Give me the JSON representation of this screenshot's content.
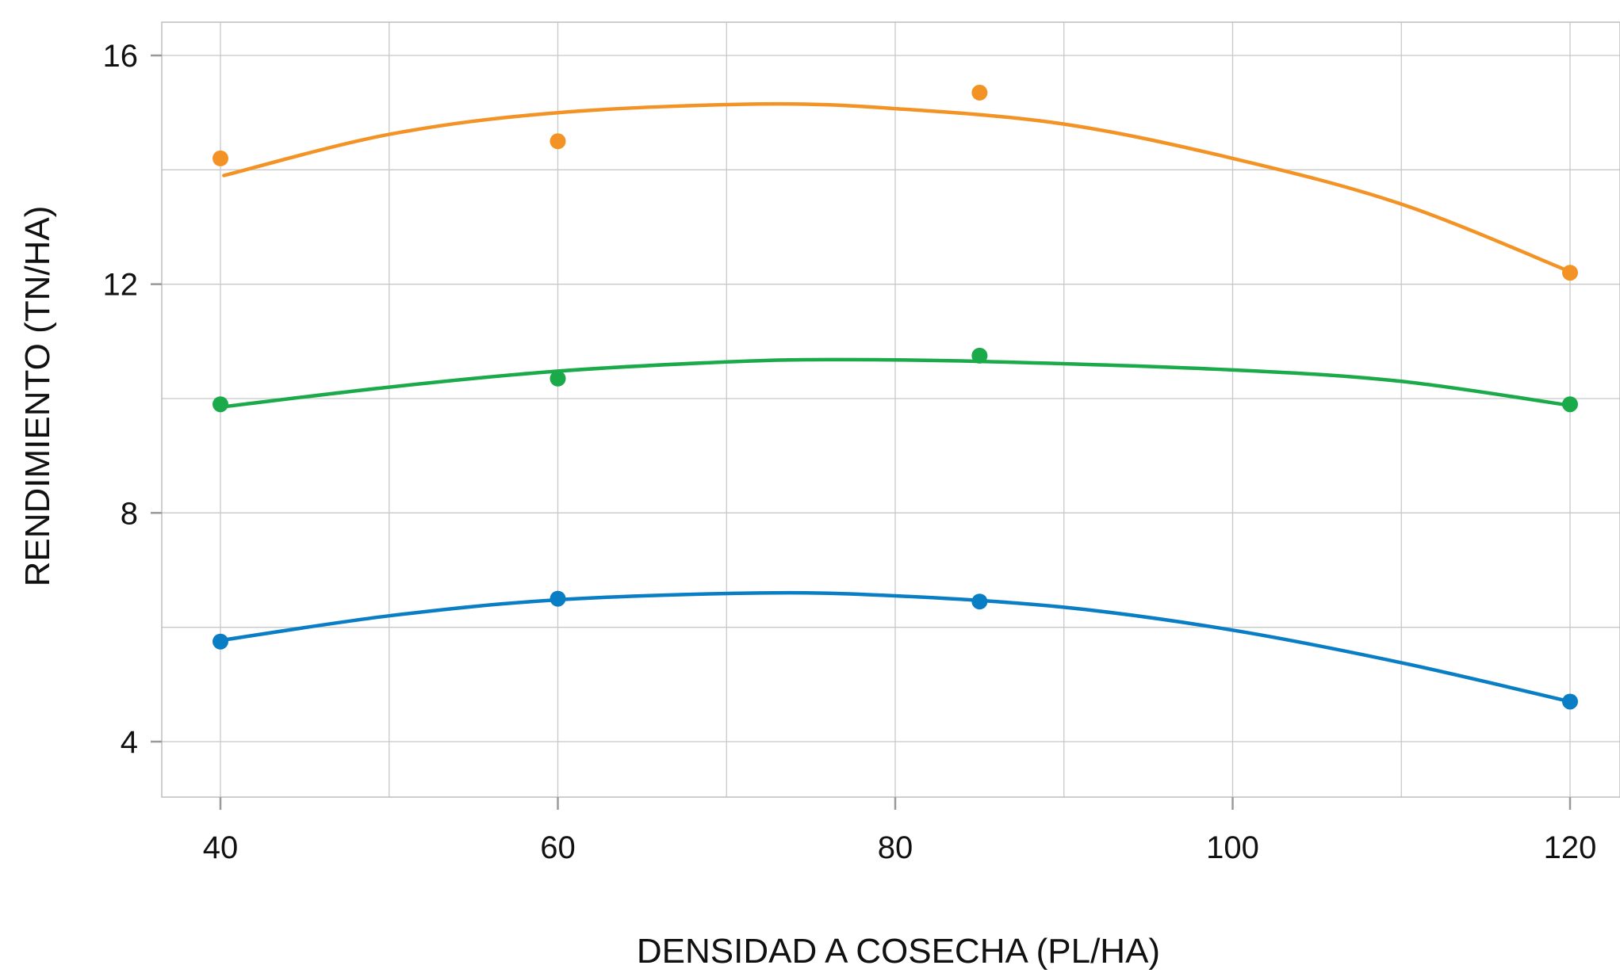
{
  "chart_data": {
    "type": "scatter",
    "title": "",
    "xlabel": "DENSIDAD A COSECHA (PL/HA)",
    "ylabel": "RENDIMIENTO (TN/HA)",
    "xlim": [
      36.5,
      123.5
    ],
    "ylim": [
      3.05,
      16.6
    ],
    "xticks": [
      40,
      60,
      80,
      100,
      120
    ],
    "yticks": [
      4,
      8,
      12,
      16
    ],
    "x_minor_grid": [
      50,
      70,
      90,
      110
    ],
    "y_minor_grid": [
      6,
      10,
      14
    ],
    "grid": true,
    "legend": "none",
    "series": [
      {
        "color": "#f39325",
        "points": [
          {
            "x": 40,
            "y": 14.2
          },
          {
            "x": 60,
            "y": 14.5
          },
          {
            "x": 85,
            "y": 15.35
          },
          {
            "x": 120,
            "y": 12.2
          }
        ],
        "fit": [
          {
            "x": 40.2,
            "y": 13.9
          },
          {
            "x": 50,
            "y": 14.62
          },
          {
            "x": 60,
            "y": 15.0
          },
          {
            "x": 72,
            "y": 15.15
          },
          {
            "x": 80,
            "y": 15.07
          },
          {
            "x": 90,
            "y": 14.8
          },
          {
            "x": 100,
            "y": 14.2
          },
          {
            "x": 110,
            "y": 13.4
          },
          {
            "x": 120,
            "y": 12.22
          }
        ]
      },
      {
        "color": "#1aaa4a",
        "points": [
          {
            "x": 40,
            "y": 9.9
          },
          {
            "x": 60,
            "y": 10.35
          },
          {
            "x": 85,
            "y": 10.75
          },
          {
            "x": 120,
            "y": 9.9
          }
        ],
        "fit": [
          {
            "x": 40,
            "y": 9.85
          },
          {
            "x": 50,
            "y": 10.2
          },
          {
            "x": 60,
            "y": 10.48
          },
          {
            "x": 70,
            "y": 10.64
          },
          {
            "x": 76,
            "y": 10.68
          },
          {
            "x": 85,
            "y": 10.65
          },
          {
            "x": 100,
            "y": 10.5
          },
          {
            "x": 110,
            "y": 10.3
          },
          {
            "x": 120,
            "y": 9.88
          }
        ]
      },
      {
        "color": "#0a7ec5",
        "points": [
          {
            "x": 40,
            "y": 5.75
          },
          {
            "x": 60,
            "y": 6.5
          },
          {
            "x": 85,
            "y": 6.45
          },
          {
            "x": 120,
            "y": 4.7
          }
        ],
        "fit": [
          {
            "x": 40,
            "y": 5.77
          },
          {
            "x": 50,
            "y": 6.2
          },
          {
            "x": 60,
            "y": 6.48
          },
          {
            "x": 72,
            "y": 6.6
          },
          {
            "x": 80,
            "y": 6.55
          },
          {
            "x": 90,
            "y": 6.35
          },
          {
            "x": 100,
            "y": 5.95
          },
          {
            "x": 110,
            "y": 5.38
          },
          {
            "x": 120,
            "y": 4.7
          }
        ]
      }
    ]
  }
}
